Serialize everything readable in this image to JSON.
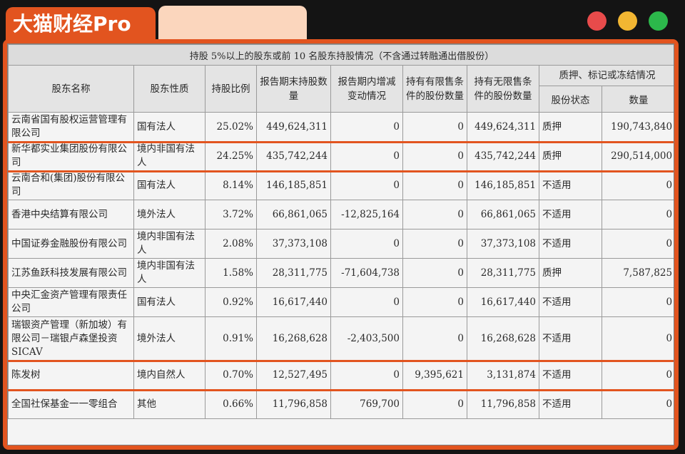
{
  "brand": {
    "label": "大猫财经Pro"
  },
  "table": {
    "title": "持股 5%以上的股东或前 10 名股东持股情况（不含通过转融通出借股份）",
    "headers": {
      "name": "股东名称",
      "nature": "股东性质",
      "ratio": "持股比例",
      "shares_end": "报告期末持股数量",
      "change": "报告期内增减变动情况",
      "restricted": "持有有限售条件的股份数量",
      "unrestricted": "持有无限售条件的股份数量",
      "pledge_group": "质押、标记或冻结情况",
      "pledge_status": "股份状态",
      "pledge_qty": "数量"
    },
    "rows": [
      {
        "name": "云南省国有股权运营管理有限公司",
        "nature": "国有法人",
        "ratio": "25.02%",
        "shares_end": "449,624,311",
        "change": "0",
        "restricted": "0",
        "unrestricted": "449,624,311",
        "status": "质押",
        "qty": "190,743,840"
      },
      {
        "name": "新华都实业集团股份有限公司",
        "nature": "境内非国有法人",
        "ratio": "24.25%",
        "shares_end": "435,742,244",
        "change": "0",
        "restricted": "0",
        "unrestricted": "435,742,244",
        "status": "质押",
        "qty": "290,514,000"
      },
      {
        "name": "云南合和(集团)股份有限公司",
        "nature": "国有法人",
        "ratio": "8.14%",
        "shares_end": "146,185,851",
        "change": "0",
        "restricted": "0",
        "unrestricted": "146,185,851",
        "status": "不适用",
        "qty": "0"
      },
      {
        "name": "香港中央结算有限公司",
        "nature": "境外法人",
        "ratio": "3.72%",
        "shares_end": "66,861,065",
        "change": "-12,825,164",
        "restricted": "0",
        "unrestricted": "66,861,065",
        "status": "不适用",
        "qty": "0"
      },
      {
        "name": "中国证券金融股份有限公司",
        "nature": "境内非国有法人",
        "ratio": "2.08%",
        "shares_end": "37,373,108",
        "change": "0",
        "restricted": "0",
        "unrestricted": "37,373,108",
        "status": "不适用",
        "qty": "0"
      },
      {
        "name": "江苏鱼跃科技发展有限公司",
        "nature": "境内非国有法人",
        "ratio": "1.58%",
        "shares_end": "28,311,775",
        "change": "-71,604,738",
        "restricted": "0",
        "unrestricted": "28,311,775",
        "status": "质押",
        "qty": "7,587,825"
      },
      {
        "name": "中央汇金资产管理有限责任公司",
        "nature": "国有法人",
        "ratio": "0.92%",
        "shares_end": "16,617,440",
        "change": "0",
        "restricted": "0",
        "unrestricted": "16,617,440",
        "status": "不适用",
        "qty": "0"
      },
      {
        "name": "瑞银资产管理（新加坡）有限公司－瑞银卢森堡投资 SICAV",
        "nature": "境外法人",
        "ratio": "0.91%",
        "shares_end": "16,268,628",
        "change": "-2,403,500",
        "restricted": "0",
        "unrestricted": "16,268,628",
        "status": "不适用",
        "qty": "0"
      },
      {
        "name": "陈发树",
        "nature": "境内自然人",
        "ratio": "0.70%",
        "shares_end": "12,527,495",
        "change": "0",
        "restricted": "9,395,621",
        "unrestricted": "3,131,874",
        "status": "不适用",
        "qty": "0"
      },
      {
        "name": "全国社保基金一一零组合",
        "nature": "其他",
        "ratio": "0.66%",
        "shares_end": "11,796,858",
        "change": "769,700",
        "restricted": "0",
        "unrestricted": "11,796,858",
        "status": "不适用",
        "qty": "0"
      }
    ]
  },
  "colors": {
    "accent": "#e2541f",
    "peach": "#fbd6bd",
    "dot_red": "#e84b4b",
    "dot_yellow": "#f2b632",
    "dot_green": "#2cb84b"
  }
}
